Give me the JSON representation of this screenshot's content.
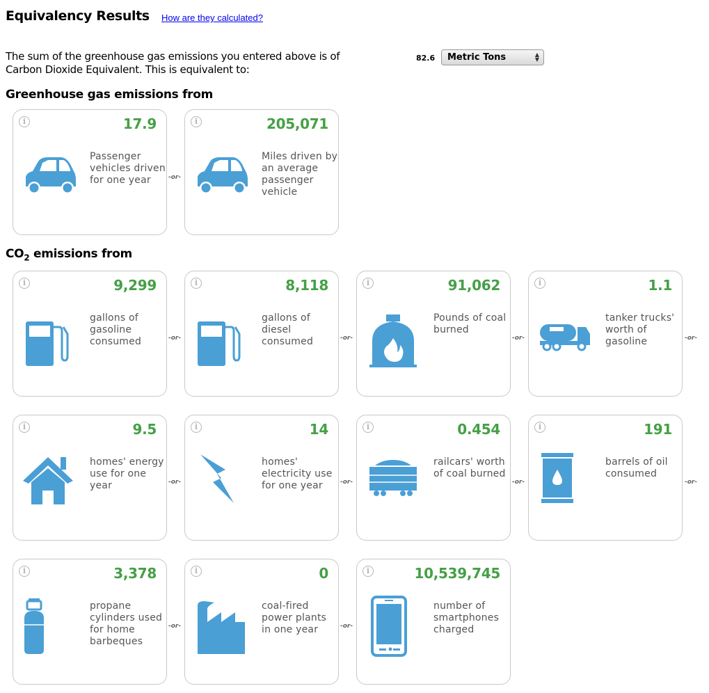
{
  "header": {
    "title": "Equivalency Results",
    "link": "How are they calculated?"
  },
  "intro": {
    "text": "The sum of the greenhouse gas emissions you entered above is of Carbon Dioxide Equivalent. This is equivalent to:",
    "total": "82.6",
    "unit_select": "Metric Tons"
  },
  "sections": {
    "ghg_title": "Greenhouse gas emissions from",
    "co2_title_prefix": "CO",
    "co2_title_sub": "2",
    "co2_title_suffix": " emissions from"
  },
  "separator": "-or-",
  "info_icon": "i",
  "ghg_cards": [
    {
      "value": "17.9",
      "desc": "Passenger vehicles driven for one year",
      "icon": "car-icon"
    },
    {
      "value": "205,071",
      "desc": "Miles driven by an average passenger vehicle",
      "icon": "car-icon"
    }
  ],
  "co2_cards": [
    {
      "value": "9,299",
      "desc": "gallons of gasoline consumed",
      "icon": "gas-pump-icon"
    },
    {
      "value": "8,118",
      "desc": "gallons of diesel consumed",
      "icon": "gas-pump-icon"
    },
    {
      "value": "91,062",
      "desc": "Pounds of coal burned",
      "icon": "coal-furnace-icon"
    },
    {
      "value": "1.1",
      "desc": "tanker trucks' worth of gasoline",
      "icon": "tanker-truck-icon"
    },
    {
      "value": "9.5",
      "desc": "homes' energy use for one year",
      "icon": "house-icon"
    },
    {
      "value": "14",
      "desc": "homes' electricity use for one year",
      "icon": "lightning-bolt-icon"
    },
    {
      "value": "0.454",
      "desc": "railcars' worth of coal burned",
      "icon": "railcar-icon"
    },
    {
      "value": "191",
      "desc": "barrels of oil consumed",
      "icon": "oil-barrel-icon"
    },
    {
      "value": "3,378",
      "desc": "propane cylinders used for home barbeques",
      "icon": "propane-cylinder-icon"
    },
    {
      "value": "0",
      "desc": "coal-fired power plants in one year",
      "icon": "power-plant-icon"
    },
    {
      "value": "10,539,745",
      "desc": "number of smartphones charged",
      "icon": "smartphone-icon"
    }
  ],
  "colors": {
    "value_green": "#45a046",
    "icon_blue": "#4a9fd5",
    "border": "#c9c9c9"
  }
}
